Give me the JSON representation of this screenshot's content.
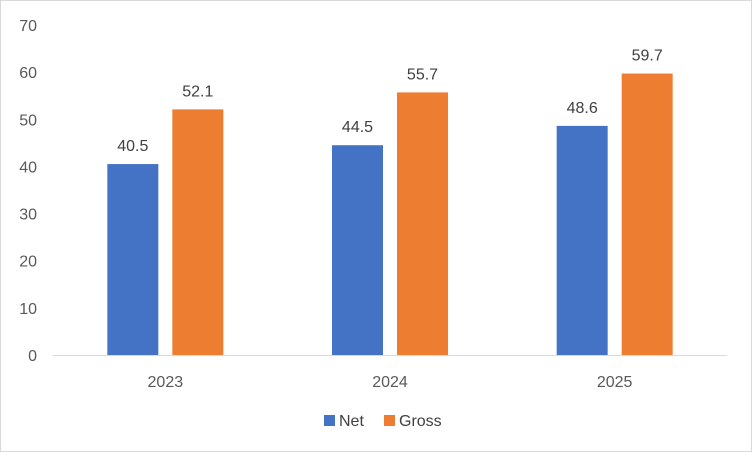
{
  "chart_data": {
    "type": "bar",
    "title": "",
    "xlabel": "",
    "ylabel": "",
    "categories": [
      "2023",
      "2024",
      "2025"
    ],
    "series": [
      {
        "name": "Net",
        "color": "#4472C4",
        "values": [
          40.5,
          44.5,
          48.6
        ]
      },
      {
        "name": "Gross",
        "color": "#ED7D31",
        "values": [
          52.1,
          55.7,
          59.7
        ]
      }
    ],
    "ylim": [
      0,
      70
    ],
    "yticks": [
      0,
      10,
      20,
      30,
      40,
      50,
      60,
      70
    ],
    "grid": false,
    "legend_position": "bottom"
  }
}
